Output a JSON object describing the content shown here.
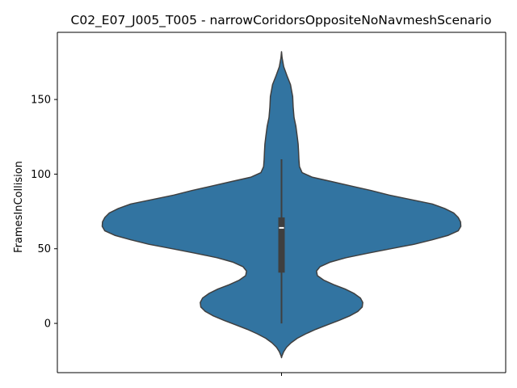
{
  "chart_data": {
    "type": "violin",
    "title": "C02_E07_J005_T005 - narrowCoridorsOppositeNoNavmeshScenario",
    "xlabel": "",
    "ylabel": "FramesInCollision",
    "yticks": [
      0,
      50,
      100,
      150
    ],
    "ylim": [
      -33,
      195
    ],
    "grid": false,
    "colors": {
      "violin_fill": "#3274a1",
      "violin_edge": "#3f3f3f",
      "box": "#3f3f3f",
      "median": "#ffffff"
    },
    "series": [
      {
        "box": {
          "q1": 34,
          "median": 64,
          "q3": 71,
          "whisker_low": 0,
          "whisker_high": 110
        },
        "density_profile": [
          [
            182,
            0.0
          ],
          [
            178,
            0.003
          ],
          [
            172,
            0.012
          ],
          [
            166,
            0.03
          ],
          [
            160,
            0.05
          ],
          [
            152,
            0.062
          ],
          [
            145,
            0.065
          ],
          [
            138,
            0.07
          ],
          [
            132,
            0.08
          ],
          [
            125,
            0.088
          ],
          [
            120,
            0.093
          ],
          [
            115,
            0.095
          ],
          [
            110,
            0.097
          ],
          [
            105,
            0.1
          ],
          [
            101,
            0.115
          ],
          [
            98,
            0.17
          ],
          [
            95,
            0.28
          ],
          [
            92,
            0.39
          ],
          [
            89,
            0.5
          ],
          [
            86,
            0.6
          ],
          [
            83,
            0.72
          ],
          [
            80,
            0.84
          ],
          [
            77,
            0.91
          ],
          [
            74,
            0.96
          ],
          [
            71,
            0.985
          ],
          [
            68,
            0.998
          ],
          [
            65,
            1.0
          ],
          [
            62,
            0.985
          ],
          [
            59,
            0.93
          ],
          [
            56,
            0.84
          ],
          [
            53,
            0.74
          ],
          [
            50,
            0.61
          ],
          [
            47,
            0.48
          ],
          [
            44,
            0.36
          ],
          [
            41,
            0.27
          ],
          [
            38,
            0.215
          ],
          [
            35,
            0.195
          ],
          [
            32,
            0.2
          ],
          [
            29,
            0.235
          ],
          [
            26,
            0.29
          ],
          [
            23,
            0.355
          ],
          [
            20,
            0.405
          ],
          [
            17,
            0.44
          ],
          [
            14,
            0.453
          ],
          [
            11,
            0.45
          ],
          [
            8,
            0.425
          ],
          [
            5,
            0.38
          ],
          [
            2,
            0.32
          ],
          [
            -1,
            0.255
          ],
          [
            -4,
            0.19
          ],
          [
            -7,
            0.135
          ],
          [
            -10,
            0.088
          ],
          [
            -13,
            0.053
          ],
          [
            -16,
            0.028
          ],
          [
            -19,
            0.012
          ],
          [
            -22,
            0.002
          ],
          [
            -23,
            0.0
          ]
        ]
      }
    ]
  }
}
